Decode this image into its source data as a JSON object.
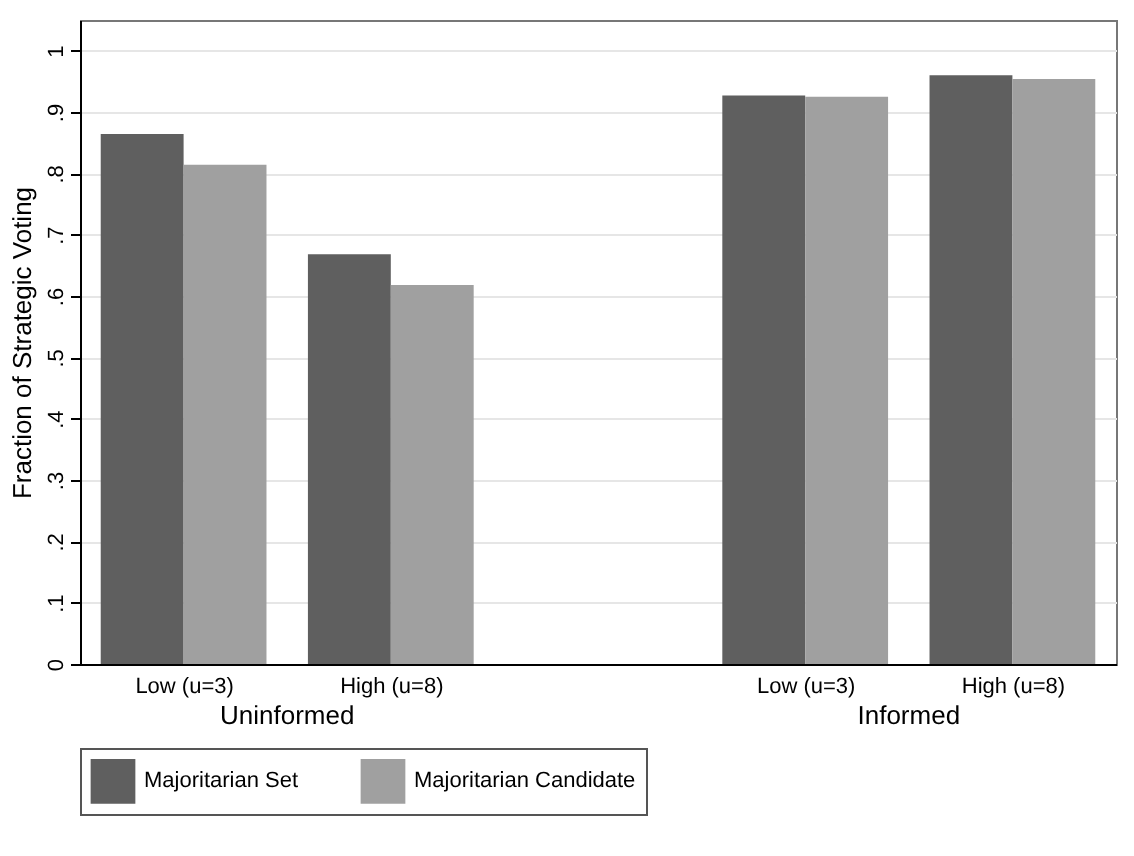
{
  "chart_data": {
    "type": "bar",
    "ylabel": "Fraction of Strategic Voting",
    "categories": [
      "Low (u=3)",
      "High (u=8)",
      "Low (u=3)",
      "High (u=8)"
    ],
    "series": [
      {
        "name": "Majoritarian Set",
        "color": "#5f5f5f",
        "values": [
          0.864,
          0.668,
          0.927,
          0.96
        ]
      },
      {
        "name": "Majoritarian Candidate",
        "color": "#a0a0a0",
        "values": [
          0.814,
          0.618,
          0.925,
          0.954
        ]
      }
    ],
    "annotations": [
      "Uninformed",
      "Informed"
    ],
    "ylim": [
      0,
      1.05
    ],
    "yticks": [
      0,
      {
        "value": 0.1,
        "label": ".1"
      },
      {
        "value": 0.2,
        "label": ".2"
      },
      {
        "value": 0.3,
        "label": ".3"
      },
      {
        "value": 0.4,
        "label": ".4"
      },
      {
        "value": 0.5,
        "label": ".5"
      },
      {
        "value": 0.6,
        "label": ".6"
      },
      {
        "value": 0.7,
        "label": ".7"
      },
      {
        "value": 0.8,
        "label": ".8"
      },
      {
        "value": 0.9,
        "label": ".9"
      },
      1
    ],
    "grid": "y",
    "legend": "bottom"
  }
}
